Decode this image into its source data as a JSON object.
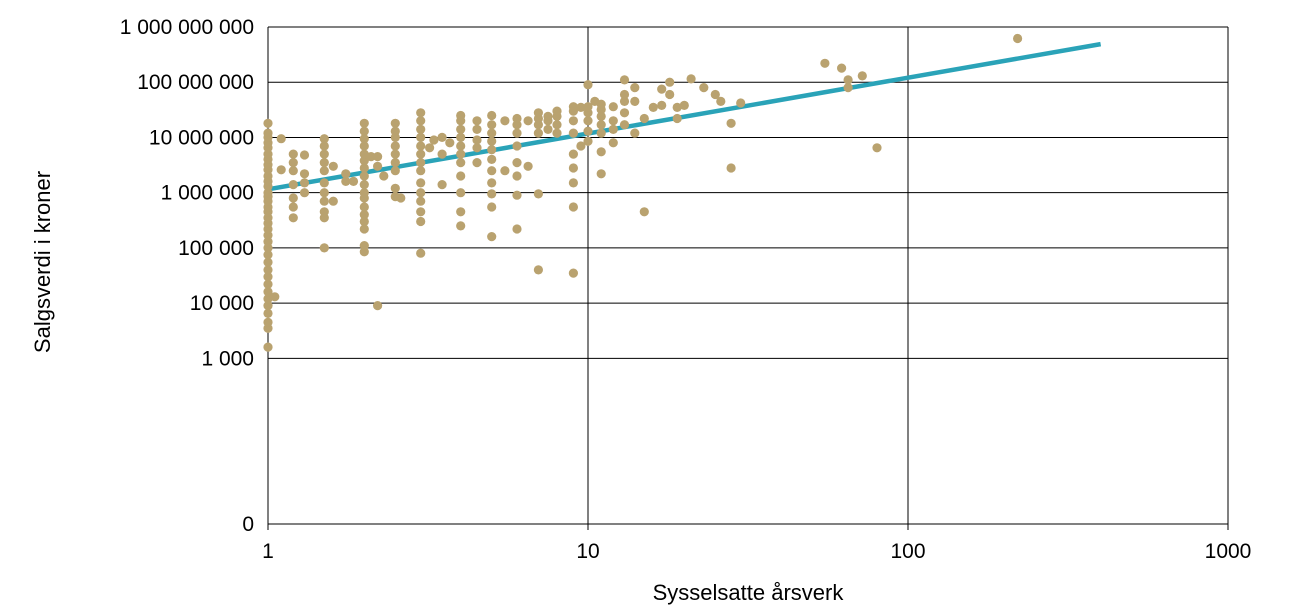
{
  "chart_data": {
    "type": "scatter",
    "title": "",
    "xlabel": "Sysselsatte årsverk",
    "ylabel": "Salgsverdi i kroner",
    "x_scale": "log",
    "y_scale": "log",
    "xlim": [
      1,
      1000
    ],
    "ylim": [
      1,
      1000000000
    ],
    "x_ticks": [
      {
        "value": 1,
        "label": "1"
      },
      {
        "value": 10,
        "label": "10"
      },
      {
        "value": 100,
        "label": "100"
      },
      {
        "value": 1000,
        "label": "1000"
      }
    ],
    "y_ticks": [
      {
        "value": 1,
        "label": "0"
      },
      {
        "value": 1000,
        "label": "1 000"
      },
      {
        "value": 10000,
        "label": "10 000"
      },
      {
        "value": 100000,
        "label": "100 000"
      },
      {
        "value": 1000000,
        "label": "1 000 000"
      },
      {
        "value": 10000000,
        "label": "10 000 000"
      },
      {
        "value": 100000000,
        "label": "100 000 000"
      },
      {
        "value": 1000000000,
        "label": "1 000 000 000"
      }
    ],
    "grid": true,
    "legend": "none",
    "colors": {
      "points": "#B9A26F",
      "trendline": "#2AA3B8",
      "grid": "#000000"
    },
    "trendline": [
      {
        "x": 1,
        "y": 1150000
      },
      {
        "x": 400,
        "y": 490000000
      }
    ],
    "points": [
      {
        "x": 1,
        "y": 1600
      },
      {
        "x": 1,
        "y": 3500
      },
      {
        "x": 1,
        "y": 4500
      },
      {
        "x": 1,
        "y": 6500
      },
      {
        "x": 1,
        "y": 9000
      },
      {
        "x": 1,
        "y": 12000
      },
      {
        "x": 1,
        "y": 16000
      },
      {
        "x": 1,
        "y": 22000
      },
      {
        "x": 1,
        "y": 30000
      },
      {
        "x": 1,
        "y": 40000
      },
      {
        "x": 1,
        "y": 55000
      },
      {
        "x": 1,
        "y": 75000
      },
      {
        "x": 1,
        "y": 100000
      },
      {
        "x": 1,
        "y": 130000
      },
      {
        "x": 1,
        "y": 170000
      },
      {
        "x": 1,
        "y": 220000
      },
      {
        "x": 1,
        "y": 280000
      },
      {
        "x": 1,
        "y": 350000
      },
      {
        "x": 1,
        "y": 450000
      },
      {
        "x": 1,
        "y": 550000
      },
      {
        "x": 1,
        "y": 700000
      },
      {
        "x": 1,
        "y": 850000
      },
      {
        "x": 1,
        "y": 1000000
      },
      {
        "x": 1,
        "y": 1300000
      },
      {
        "x": 1,
        "y": 1600000
      },
      {
        "x": 1,
        "y": 2000000
      },
      {
        "x": 1,
        "y": 2600000
      },
      {
        "x": 1,
        "y": 3200000
      },
      {
        "x": 1,
        "y": 4000000
      },
      {
        "x": 1,
        "y": 5000000
      },
      {
        "x": 1,
        "y": 6500000
      },
      {
        "x": 1,
        "y": 8000000
      },
      {
        "x": 1,
        "y": 10000000
      },
      {
        "x": 1,
        "y": 12000000
      },
      {
        "x": 1,
        "y": 18000000
      },
      {
        "x": 1.05,
        "y": 13000
      },
      {
        "x": 1.1,
        "y": 9500000
      },
      {
        "x": 1.1,
        "y": 2600000
      },
      {
        "x": 1.2,
        "y": 350000
      },
      {
        "x": 1.2,
        "y": 550000
      },
      {
        "x": 1.2,
        "y": 800000
      },
      {
        "x": 1.2,
        "y": 1400000
      },
      {
        "x": 1.2,
        "y": 2500000
      },
      {
        "x": 1.2,
        "y": 3500000
      },
      {
        "x": 1.2,
        "y": 5000000
      },
      {
        "x": 1.3,
        "y": 1000000
      },
      {
        "x": 1.3,
        "y": 1500000
      },
      {
        "x": 1.3,
        "y": 2200000
      },
      {
        "x": 1.3,
        "y": 4800000
      },
      {
        "x": 1.5,
        "y": 100000
      },
      {
        "x": 1.5,
        "y": 350000
      },
      {
        "x": 1.5,
        "y": 450000
      },
      {
        "x": 1.5,
        "y": 700000
      },
      {
        "x": 1.5,
        "y": 1000000
      },
      {
        "x": 1.5,
        "y": 1500000
      },
      {
        "x": 1.5,
        "y": 2500000
      },
      {
        "x": 1.5,
        "y": 3500000
      },
      {
        "x": 1.5,
        "y": 5000000
      },
      {
        "x": 1.5,
        "y": 7000000
      },
      {
        "x": 1.5,
        "y": 9500000
      },
      {
        "x": 1.6,
        "y": 700000
      },
      {
        "x": 1.6,
        "y": 3000000
      },
      {
        "x": 1.75,
        "y": 1600000
      },
      {
        "x": 1.75,
        "y": 2200000
      },
      {
        "x": 1.85,
        "y": 1600000
      },
      {
        "x": 2,
        "y": 85000
      },
      {
        "x": 2,
        "y": 110000
      },
      {
        "x": 2,
        "y": 220000
      },
      {
        "x": 2,
        "y": 300000
      },
      {
        "x": 2,
        "y": 400000
      },
      {
        "x": 2,
        "y": 550000
      },
      {
        "x": 2,
        "y": 800000
      },
      {
        "x": 2,
        "y": 1000000
      },
      {
        "x": 2,
        "y": 1400000
      },
      {
        "x": 2,
        "y": 2000000
      },
      {
        "x": 2,
        "y": 2800000
      },
      {
        "x": 2,
        "y": 3800000
      },
      {
        "x": 2,
        "y": 5000000
      },
      {
        "x": 2,
        "y": 7000000
      },
      {
        "x": 2,
        "y": 9500000
      },
      {
        "x": 2,
        "y": 13000000
      },
      {
        "x": 2,
        "y": 18000000
      },
      {
        "x": 2.1,
        "y": 4500000
      },
      {
        "x": 2.2,
        "y": 9000
      },
      {
        "x": 2.2,
        "y": 3000000
      },
      {
        "x": 2.2,
        "y": 4500000
      },
      {
        "x": 2.3,
        "y": 2000000
      },
      {
        "x": 2.5,
        "y": 850000
      },
      {
        "x": 2.5,
        "y": 1200000
      },
      {
        "x": 2.5,
        "y": 2500000
      },
      {
        "x": 2.5,
        "y": 3500000
      },
      {
        "x": 2.5,
        "y": 5000000
      },
      {
        "x": 2.5,
        "y": 7000000
      },
      {
        "x": 2.5,
        "y": 10000000
      },
      {
        "x": 2.5,
        "y": 13000000
      },
      {
        "x": 2.5,
        "y": 18000000
      },
      {
        "x": 2.6,
        "y": 800000
      },
      {
        "x": 3,
        "y": 80000
      },
      {
        "x": 3,
        "y": 300000
      },
      {
        "x": 3,
        "y": 450000
      },
      {
        "x": 3,
        "y": 700000
      },
      {
        "x": 3,
        "y": 1000000
      },
      {
        "x": 3,
        "y": 1500000
      },
      {
        "x": 3,
        "y": 2500000
      },
      {
        "x": 3,
        "y": 3500000
      },
      {
        "x": 3,
        "y": 5000000
      },
      {
        "x": 3,
        "y": 7000000
      },
      {
        "x": 3,
        "y": 10000000
      },
      {
        "x": 3,
        "y": 14000000
      },
      {
        "x": 3,
        "y": 20000000
      },
      {
        "x": 3,
        "y": 28000000
      },
      {
        "x": 3.2,
        "y": 6500000
      },
      {
        "x": 3.3,
        "y": 9000000
      },
      {
        "x": 3.5,
        "y": 1400000
      },
      {
        "x": 3.5,
        "y": 5000000
      },
      {
        "x": 3.5,
        "y": 10000000
      },
      {
        "x": 3.7,
        "y": 8000000
      },
      {
        "x": 4,
        "y": 250000
      },
      {
        "x": 4,
        "y": 450000
      },
      {
        "x": 4,
        "y": 1000000
      },
      {
        "x": 4,
        "y": 2000000
      },
      {
        "x": 4,
        "y": 3500000
      },
      {
        "x": 4,
        "y": 5000000
      },
      {
        "x": 4,
        "y": 7000000
      },
      {
        "x": 4,
        "y": 10000000
      },
      {
        "x": 4,
        "y": 14000000
      },
      {
        "x": 4,
        "y": 20000000
      },
      {
        "x": 4,
        "y": 25000000
      },
      {
        "x": 4.5,
        "y": 3500000
      },
      {
        "x": 4.5,
        "y": 6500000
      },
      {
        "x": 4.5,
        "y": 9000000
      },
      {
        "x": 4.5,
        "y": 14000000
      },
      {
        "x": 4.5,
        "y": 20000000
      },
      {
        "x": 5,
        "y": 160000
      },
      {
        "x": 5,
        "y": 550000
      },
      {
        "x": 5,
        "y": 950000
      },
      {
        "x": 5,
        "y": 1500000
      },
      {
        "x": 5,
        "y": 2500000
      },
      {
        "x": 5,
        "y": 4000000
      },
      {
        "x": 5,
        "y": 6000000
      },
      {
        "x": 5,
        "y": 8500000
      },
      {
        "x": 5,
        "y": 12000000
      },
      {
        "x": 5,
        "y": 17000000
      },
      {
        "x": 5,
        "y": 25000000
      },
      {
        "x": 5.5,
        "y": 2500000
      },
      {
        "x": 5.5,
        "y": 20000000
      },
      {
        "x": 6,
        "y": 220000
      },
      {
        "x": 6,
        "y": 900000
      },
      {
        "x": 6,
        "y": 2000000
      },
      {
        "x": 6,
        "y": 3500000
      },
      {
        "x": 6,
        "y": 7000000
      },
      {
        "x": 6,
        "y": 12000000
      },
      {
        "x": 6,
        "y": 17000000
      },
      {
        "x": 6,
        "y": 22000000
      },
      {
        "x": 6.5,
        "y": 3000000
      },
      {
        "x": 6.5,
        "y": 20000000
      },
      {
        "x": 7,
        "y": 40000
      },
      {
        "x": 7,
        "y": 950000
      },
      {
        "x": 7,
        "y": 12000000
      },
      {
        "x": 7,
        "y": 17000000
      },
      {
        "x": 7,
        "y": 22000000
      },
      {
        "x": 7,
        "y": 28000000
      },
      {
        "x": 7.5,
        "y": 14000000
      },
      {
        "x": 7.5,
        "y": 20000000
      },
      {
        "x": 7.5,
        "y": 24000000
      },
      {
        "x": 8,
        "y": 12000000
      },
      {
        "x": 8,
        "y": 17000000
      },
      {
        "x": 8,
        "y": 24000000
      },
      {
        "x": 8,
        "y": 30000000
      },
      {
        "x": 9,
        "y": 35000
      },
      {
        "x": 9,
        "y": 550000
      },
      {
        "x": 9,
        "y": 1500000
      },
      {
        "x": 9,
        "y": 2800000
      },
      {
        "x": 9,
        "y": 5000000
      },
      {
        "x": 9,
        "y": 12000000
      },
      {
        "x": 9,
        "y": 20000000
      },
      {
        "x": 9,
        "y": 30000000
      },
      {
        "x": 9,
        "y": 36000000
      },
      {
        "x": 9.5,
        "y": 7000000
      },
      {
        "x": 9.5,
        "y": 35000000
      },
      {
        "x": 10,
        "y": 8500000
      },
      {
        "x": 10,
        "y": 13000000
      },
      {
        "x": 10,
        "y": 20000000
      },
      {
        "x": 10,
        "y": 28000000
      },
      {
        "x": 10,
        "y": 36000000
      },
      {
        "x": 10,
        "y": 90000000
      },
      {
        "x": 10.5,
        "y": 45000000
      },
      {
        "x": 11,
        "y": 2200000
      },
      {
        "x": 11,
        "y": 5500000
      },
      {
        "x": 11,
        "y": 12000000
      },
      {
        "x": 11,
        "y": 17000000
      },
      {
        "x": 11,
        "y": 24000000
      },
      {
        "x": 11,
        "y": 32000000
      },
      {
        "x": 11,
        "y": 40000000
      },
      {
        "x": 12,
        "y": 8000000
      },
      {
        "x": 12,
        "y": 14000000
      },
      {
        "x": 12,
        "y": 20000000
      },
      {
        "x": 12,
        "y": 36000000
      },
      {
        "x": 13,
        "y": 17000000
      },
      {
        "x": 13,
        "y": 28000000
      },
      {
        "x": 13,
        "y": 45000000
      },
      {
        "x": 13,
        "y": 60000000
      },
      {
        "x": 13,
        "y": 110000000
      },
      {
        "x": 14,
        "y": 12000000
      },
      {
        "x": 14,
        "y": 45000000
      },
      {
        "x": 14,
        "y": 80000000
      },
      {
        "x": 15,
        "y": 450000
      },
      {
        "x": 15,
        "y": 22000000
      },
      {
        "x": 16,
        "y": 35000000
      },
      {
        "x": 17,
        "y": 38000000
      },
      {
        "x": 17,
        "y": 75000000
      },
      {
        "x": 18,
        "y": 60000000
      },
      {
        "x": 18,
        "y": 100000000
      },
      {
        "x": 19,
        "y": 22000000
      },
      {
        "x": 19,
        "y": 35000000
      },
      {
        "x": 20,
        "y": 38000000
      },
      {
        "x": 21,
        "y": 115000000
      },
      {
        "x": 23,
        "y": 80000000
      },
      {
        "x": 25,
        "y": 60000000
      },
      {
        "x": 26,
        "y": 45000000
      },
      {
        "x": 28,
        "y": 2800000
      },
      {
        "x": 28,
        "y": 18000000
      },
      {
        "x": 30,
        "y": 42000000
      },
      {
        "x": 55,
        "y": 220000000
      },
      {
        "x": 62,
        "y": 180000000
      },
      {
        "x": 65,
        "y": 110000000
      },
      {
        "x": 65,
        "y": 80000000
      },
      {
        "x": 72,
        "y": 130000000
      },
      {
        "x": 80,
        "y": 6500000
      },
      {
        "x": 220,
        "y": 620000000
      }
    ]
  }
}
